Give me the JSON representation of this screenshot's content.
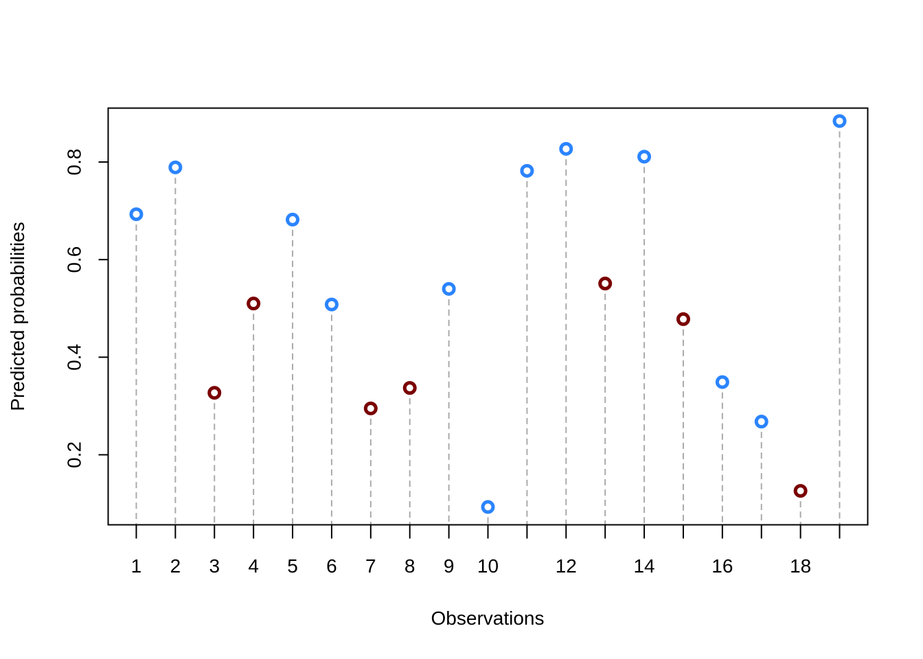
{
  "chart_data": {
    "type": "scatter",
    "title": "",
    "xlabel": "Observations",
    "ylabel": "Predicted probabilities",
    "xlim": [
      0.28,
      19.72
    ],
    "ylim": [
      0.0565,
      0.9105
    ],
    "x_ticks": [
      1,
      2,
      3,
      4,
      5,
      6,
      7,
      8,
      9,
      10,
      11,
      12,
      13,
      14,
      15,
      16,
      17,
      18,
      19
    ],
    "x_tick_labels": [
      "1",
      "2",
      "3",
      "4",
      "5",
      "6",
      "7",
      "8",
      "9",
      "10",
      "",
      "12",
      "",
      "14",
      "",
      "16",
      "",
      "18",
      ""
    ],
    "y_ticks": [
      0.2,
      0.4,
      0.6,
      0.8
    ],
    "y_tick_labels": [
      "0.2",
      "0.4",
      "0.6",
      "0.8"
    ],
    "grid": false,
    "drop_lines": "dashed vertical line from each point down to the x-axis",
    "colors": {
      "blue": "#2b84ff",
      "darkred": "#7a0000",
      "drop_line": "#aaaaaa"
    },
    "points": [
      {
        "x": 1,
        "y": 0.693,
        "color": "blue"
      },
      {
        "x": 2,
        "y": 0.789,
        "color": "blue"
      },
      {
        "x": 3,
        "y": 0.327,
        "color": "darkred"
      },
      {
        "x": 4,
        "y": 0.51,
        "color": "darkred"
      },
      {
        "x": 5,
        "y": 0.682,
        "color": "blue"
      },
      {
        "x": 6,
        "y": 0.508,
        "color": "blue"
      },
      {
        "x": 7,
        "y": 0.295,
        "color": "darkred"
      },
      {
        "x": 8,
        "y": 0.337,
        "color": "darkred"
      },
      {
        "x": 9,
        "y": 0.54,
        "color": "blue"
      },
      {
        "x": 10,
        "y": 0.093,
        "color": "blue"
      },
      {
        "x": 11,
        "y": 0.782,
        "color": "blue"
      },
      {
        "x": 12,
        "y": 0.827,
        "color": "blue"
      },
      {
        "x": 13,
        "y": 0.551,
        "color": "darkred"
      },
      {
        "x": 14,
        "y": 0.811,
        "color": "blue"
      },
      {
        "x": 15,
        "y": 0.478,
        "color": "darkred"
      },
      {
        "x": 16,
        "y": 0.349,
        "color": "blue"
      },
      {
        "x": 17,
        "y": 0.268,
        "color": "blue"
      },
      {
        "x": 18,
        "y": 0.126,
        "color": "darkred"
      },
      {
        "x": 19,
        "y": 0.884,
        "color": "blue"
      }
    ]
  }
}
